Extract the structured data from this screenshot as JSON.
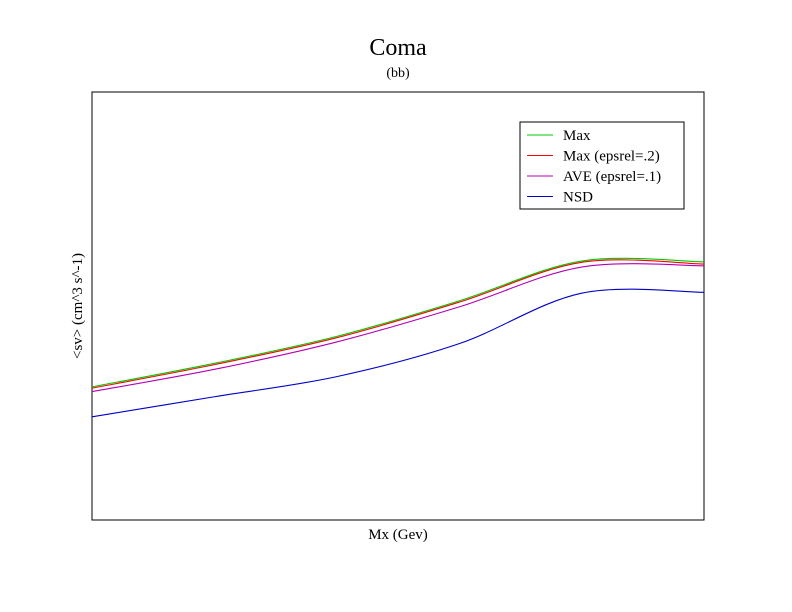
{
  "chart_data": {
    "type": "line",
    "title": "Coma",
    "subtitle": "(bb)",
    "xlabel": "Mx (Gev)",
    "ylabel": "<sv> (cm^3 s^-1)",
    "xlim": [
      0,
      1
    ],
    "ylim": [
      0,
      1
    ],
    "x_ticks_shown": false,
    "y_ticks_shown": false,
    "grid": false,
    "legend_position": "top-right",
    "series": [
      {
        "name": "Max",
        "color": "#00c800",
        "x": [
          0,
          0.2,
          0.4,
          0.6,
          0.8,
          1.0
        ],
        "y": [
          0.311,
          0.366,
          0.429,
          0.512,
          0.605,
          0.603
        ]
      },
      {
        "name": "Max (epsrel=.2)",
        "color": "#ff0000",
        "x": [
          0,
          0.2,
          0.4,
          0.6,
          0.8,
          1.0
        ],
        "y": [
          0.308,
          0.363,
          0.426,
          0.509,
          0.602,
          0.598
        ]
      },
      {
        "name": "AVE (epsrel=.1)",
        "color": "#b400b4",
        "x": [
          0,
          0.2,
          0.4,
          0.6,
          0.8,
          1.0
        ],
        "y": [
          0.3,
          0.352,
          0.416,
          0.498,
          0.591,
          0.594
        ]
      },
      {
        "name": "NSD",
        "color": "#0000c8",
        "x": [
          0,
          0.2,
          0.4,
          0.6,
          0.8,
          1.0
        ],
        "y": [
          0.241,
          0.288,
          0.335,
          0.412,
          0.53,
          0.532
        ]
      }
    ]
  }
}
